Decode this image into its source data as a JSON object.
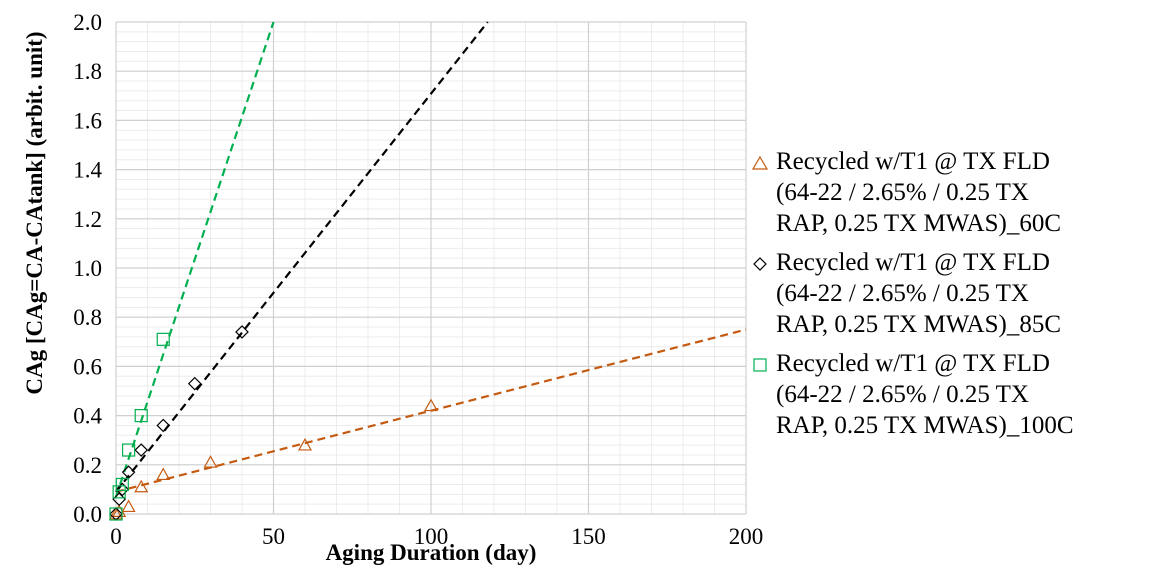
{
  "chart_data": {
    "type": "scatter",
    "xlabel": "Aging Duration (day)",
    "ylabel": "CAg [CAg=CA-CAtank] (arbit. unit)",
    "xlim": [
      0,
      200
    ],
    "ylim": [
      0,
      2.0
    ],
    "x_ticks": [
      0,
      50,
      100,
      150,
      200
    ],
    "y_ticks": [
      0.0,
      0.2,
      0.4,
      0.6,
      0.8,
      1.0,
      1.2,
      1.4,
      1.6,
      1.8,
      2.0
    ],
    "x_tick_labels": [
      "0",
      "50",
      "100",
      "150",
      "200"
    ],
    "y_tick_labels": [
      "0.0",
      "0.2",
      "0.4",
      "0.6",
      "0.8",
      "1.0",
      "1.2",
      "1.4",
      "1.6",
      "1.8",
      "2.0"
    ],
    "grid": true,
    "legend_position": "right",
    "series": [
      {
        "name": "Recycled w/T1 @ TX FLD (64-22 / 2.65% / 0.25 TX RAP, 0.25 TX MWAS)_60C",
        "marker": "triangle",
        "color": "#C55A11",
        "x": [
          0,
          1,
          4,
          8,
          15,
          30,
          60,
          100
        ],
        "y": [
          0.0,
          0.01,
          0.03,
          0.11,
          0.16,
          0.21,
          0.28,
          0.44
        ],
        "trendline": {
          "x": [
            0,
            200
          ],
          "y": [
            0.09,
            0.75
          ]
        }
      },
      {
        "name": "Recycled w/T1 @ TX FLD (64-22 / 2.65% / 0.25 TX RAP, 0.25 TX MWAS)_85C",
        "marker": "diamond",
        "color": "#000000",
        "x": [
          0,
          1,
          2,
          4,
          8,
          15,
          25,
          40
        ],
        "y": [
          0.0,
          0.06,
          0.1,
          0.17,
          0.26,
          0.36,
          0.53,
          0.74
        ],
        "trendline": {
          "x": [
            0,
            118
          ],
          "y": [
            0.09,
            2.0
          ]
        }
      },
      {
        "name": "Recycled w/T1 @ TX FLD (64-22 / 2.65% / 0.25 TX RAP, 0.25 TX MWAS)_100C",
        "marker": "square",
        "color": "#00B050",
        "x": [
          0,
          1,
          2,
          4,
          8,
          15
        ],
        "y": [
          0.0,
          0.09,
          0.12,
          0.26,
          0.4,
          0.71
        ],
        "trendline": {
          "x": [
            0,
            50
          ],
          "y": [
            0.07,
            2.0
          ]
        }
      }
    ]
  },
  "legend": {
    "items": [
      {
        "lines": [
          "Recycled w/T1 @ TX FLD",
          "(64-22 / 2.65% / 0.25 TX",
          "RAP, 0.25 TX MWAS)_60C"
        ]
      },
      {
        "lines": [
          "Recycled w/T1 @ TX FLD",
          "(64-22 / 2.65% / 0.25 TX",
          "RAP, 0.25 TX MWAS)_85C"
        ]
      },
      {
        "lines": [
          "Recycled w/T1 @ TX FLD",
          "(64-22 / 2.65% / 0.25 TX",
          "RAP, 0.25 TX MWAS)_100C"
        ]
      }
    ]
  }
}
